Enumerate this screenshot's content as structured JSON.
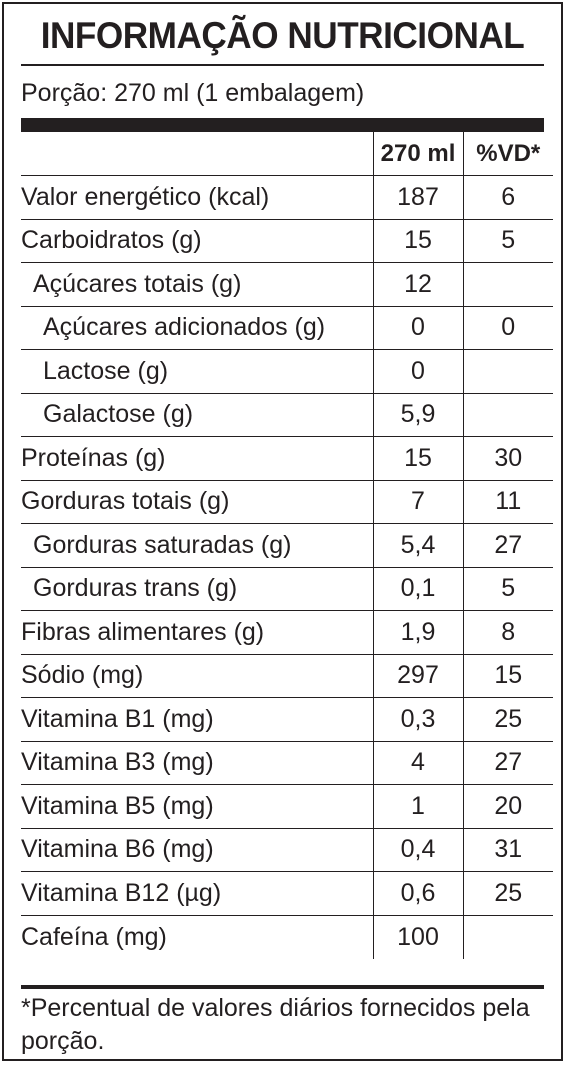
{
  "title": "INFORMAÇÃO NUTRICIONAL",
  "portion": "Porção: 270 ml (1 embalagem)",
  "headers": {
    "name": "",
    "quantity": "270 ml",
    "daily_value": "%VD*"
  },
  "rows": [
    {
      "name": "Valor energético (kcal)",
      "quantity": "187",
      "daily_value": "6",
      "indent": 0
    },
    {
      "name": "Carboidratos (g)",
      "quantity": "15",
      "daily_value": "5",
      "indent": 0
    },
    {
      "name": "Açúcares totais (g)",
      "quantity": "12",
      "daily_value": "",
      "indent": 1
    },
    {
      "name": "Açúcares adicionados (g)",
      "quantity": "0",
      "daily_value": "0",
      "indent": 2
    },
    {
      "name": "Lactose (g)",
      "quantity": "0",
      "daily_value": "",
      "indent": 2
    },
    {
      "name": "Galactose (g)",
      "quantity": "5,9",
      "daily_value": "",
      "indent": 2
    },
    {
      "name": "Proteínas (g)",
      "quantity": "15",
      "daily_value": "30",
      "indent": 0
    },
    {
      "name": "Gorduras totais (g)",
      "quantity": "7",
      "daily_value": "11",
      "indent": 0
    },
    {
      "name": "Gorduras saturadas (g)",
      "quantity": "5,4",
      "daily_value": "27",
      "indent": 1
    },
    {
      "name": "Gorduras trans (g)",
      "quantity": "0,1",
      "daily_value": "5",
      "indent": 1
    },
    {
      "name": "Fibras alimentares (g)",
      "quantity": "1,9",
      "daily_value": "8",
      "indent": 0
    },
    {
      "name": "Sódio (mg)",
      "quantity": "297",
      "daily_value": "15",
      "indent": 0
    },
    {
      "name": "Vitamina B1 (mg)",
      "quantity": "0,3",
      "daily_value": "25",
      "indent": 0
    },
    {
      "name": "Vitamina B3 (mg)",
      "quantity": "4",
      "daily_value": "27",
      "indent": 0
    },
    {
      "name": "Vitamina B5 (mg)",
      "quantity": "1",
      "daily_value": "20",
      "indent": 0
    },
    {
      "name": "Vitamina B6 (mg)",
      "quantity": "0,4",
      "daily_value": "31",
      "indent": 0
    },
    {
      "name": "Vitamina B12 (µg)",
      "quantity": "0,6",
      "daily_value": "25",
      "indent": 0
    },
    {
      "name": "Cafeína (mg)",
      "quantity": "100",
      "daily_value": "",
      "indent": 0
    }
  ],
  "footnote": "*Percentual de valores diários fornecidos pela porção.",
  "colors": {
    "ink": "#231f20",
    "background": "#ffffff"
  }
}
